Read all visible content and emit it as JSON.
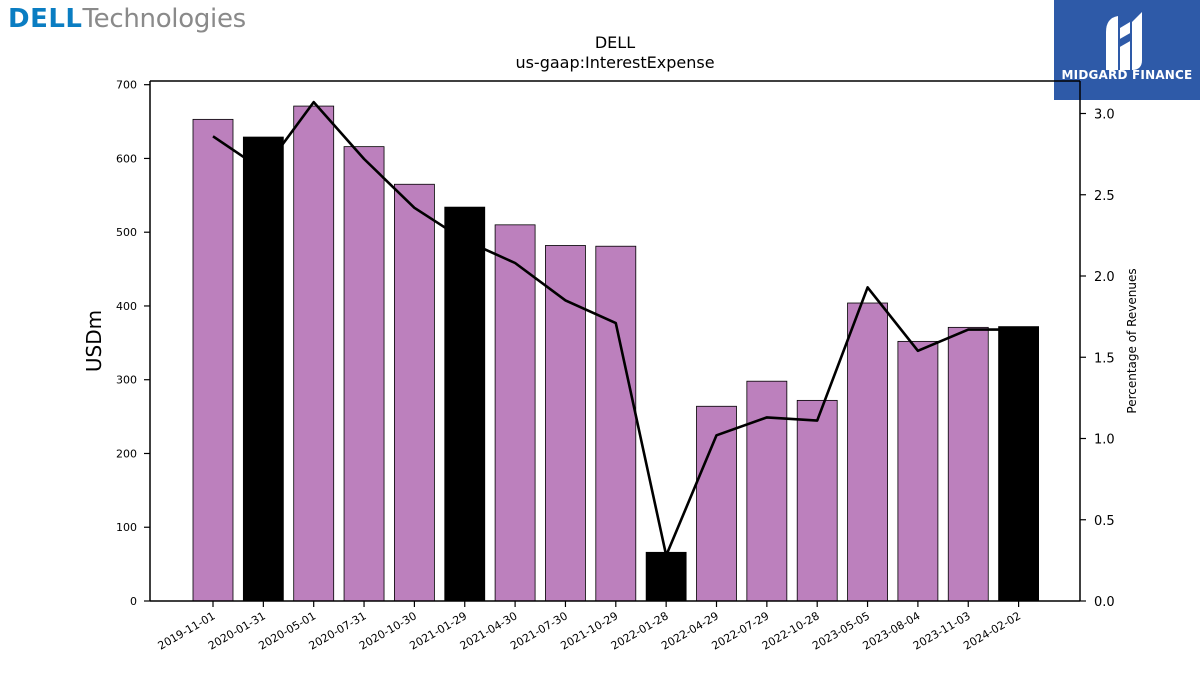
{
  "logos": {
    "dell_brand": "DELL",
    "dell_sub": "Technologies",
    "midgard": "MIDGARD FINANCE"
  },
  "chart_data": {
    "type": "bar",
    "title": "DELL",
    "subtitle": "us-gaap:InterestExpense",
    "ylabel": "USDm",
    "y2label": "Percentage of Revenues",
    "ylim": [
      0,
      705
    ],
    "y2lim": [
      0,
      3.2
    ],
    "yticks": [
      0,
      100,
      200,
      300,
      400,
      500,
      600,
      700
    ],
    "y2ticks": [
      "0.0",
      "0.5",
      "1.0",
      "1.5",
      "2.0",
      "2.5",
      "3.0"
    ],
    "grid": false,
    "categories": [
      "2019-11-01",
      "2020-01-31",
      "2020-05-01",
      "2020-07-31",
      "2020-10-30",
      "2021-01-29",
      "2021-04-30",
      "2021-07-30",
      "2021-10-29",
      "2022-01-28",
      "2022-04-29",
      "2022-07-29",
      "2022-10-28",
      "2023-05-05",
      "2023-08-04",
      "2023-11-03",
      "2024-02-02"
    ],
    "series": [
      {
        "type": "bar",
        "axis": "left",
        "values": [
          653,
          629,
          671,
          616,
          565,
          534,
          510,
          482,
          481,
          66,
          264,
          298,
          272,
          404,
          352,
          371,
          372
        ],
        "colors": [
          "#bc80bd",
          "#000000",
          "#bc80bd",
          "#bc80bd",
          "#bc80bd",
          "#000000",
          "#bc80bd",
          "#bc80bd",
          "#bc80bd",
          "#000000",
          "#bc80bd",
          "#bc80bd",
          "#bc80bd",
          "#bc80bd",
          "#bc80bd",
          "#bc80bd",
          "#000000"
        ]
      },
      {
        "type": "line",
        "axis": "right",
        "color": "#000000",
        "values": [
          2.86,
          2.65,
          3.07,
          2.72,
          2.42,
          2.22,
          2.08,
          1.85,
          1.71,
          0.28,
          1.02,
          1.13,
          1.11,
          1.93,
          1.54,
          1.67,
          1.67
        ]
      }
    ]
  }
}
